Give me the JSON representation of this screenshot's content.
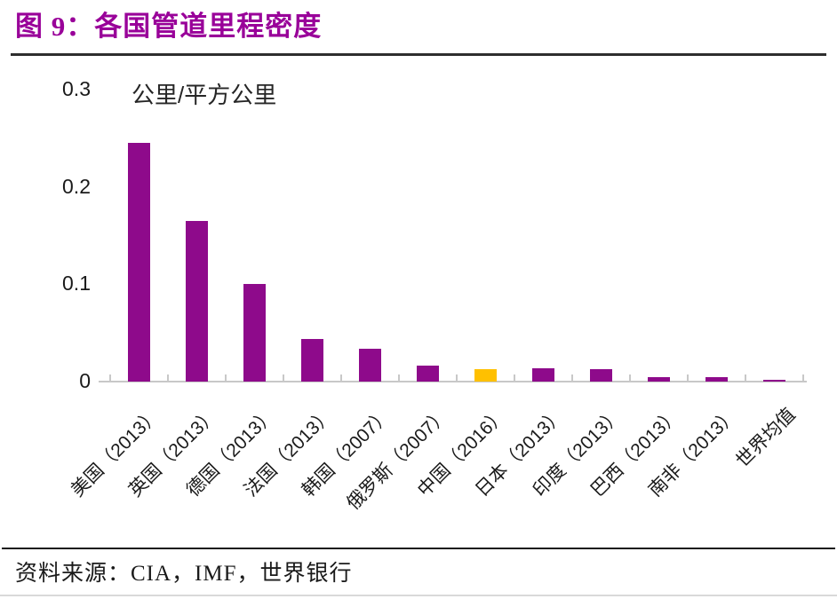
{
  "header": {
    "title": "图 9：各国管道里程密度"
  },
  "footer": {
    "source": "资料来源：CIA，IMF，世界银行"
  },
  "colors": {
    "title_purple": "#990099",
    "bar_purple": "#8E0A8B",
    "bar_yellow": "#FFC000",
    "axis_grey": "#c8c8c8",
    "divider_dark": "#2e2e2e",
    "divider_light": "#d9d9d9"
  },
  "chart_data": {
    "type": "bar",
    "title": "各国管道里程密度",
    "figure_label": "图 9",
    "unit_label": "公里/平方公里",
    "categories": [
      "美国（2013）",
      "英国（2013）",
      "德国（2013）",
      "法国（2013）",
      "韩国（2007）",
      "俄罗斯（2007）",
      "中国（2016）",
      "日本（2013）",
      "印度（2013）",
      "巴西（2013）",
      "南非（2013）",
      "世界均值"
    ],
    "values": [
      0.245,
      0.165,
      0.1,
      0.044,
      0.034,
      0.016,
      0.013,
      0.014,
      0.013,
      0.005,
      0.005,
      0.002
    ],
    "ylim": [
      0,
      0.3
    ],
    "ytick_labels": [
      "0",
      "0.1",
      "0.2",
      "0.3"
    ],
    "xlabel": "",
    "ylabel": "公里/平方公里",
    "grid": false,
    "legend": "none",
    "bar_color_default": "#8E0A8B",
    "bar_color_highlight": "#FFC000",
    "highlight_index": 6,
    "x_label_rotation_deg": -45,
    "source_text": "资料来源：CIA，IMF，世界银行"
  }
}
